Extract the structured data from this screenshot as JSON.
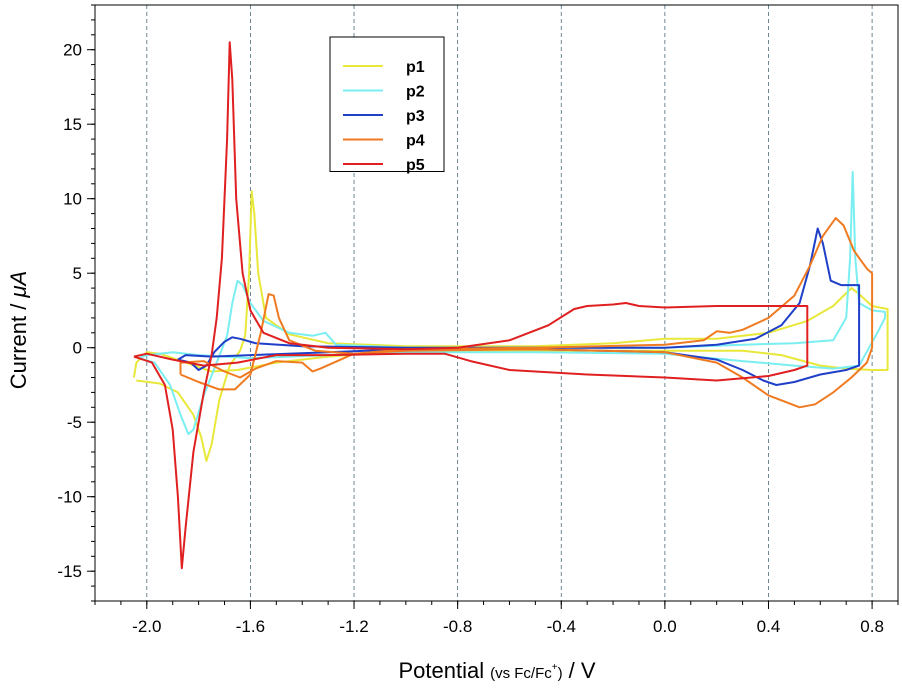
{
  "chart_data": {
    "type": "line",
    "title": "",
    "xlabel": {
      "main": "Potential",
      "paren_prefix": "(vs Fc/Fc",
      "paren_sup": "+",
      "paren_suffix": ")",
      "unit": "/ V"
    },
    "ylabel": {
      "main": "Current / ",
      "unit_italic": "μA"
    },
    "xlim": [
      -2.2,
      0.9
    ],
    "ylim": [
      -17,
      23
    ],
    "x_ticks": [
      -2.0,
      -1.6,
      -1.2,
      -0.8,
      -0.4,
      0.0,
      0.4,
      0.8
    ],
    "x_tick_labels": [
      "-2.0",
      "-1.6",
      "-1.2",
      "-0.8",
      "-0.4",
      "0.0",
      "0.4",
      "0.8"
    ],
    "y_ticks": [
      -15,
      -10,
      -5,
      0,
      5,
      10,
      15,
      20
    ],
    "y_tick_labels": [
      "-15",
      "-10",
      "-5",
      "0",
      "5",
      "10",
      "15",
      "20"
    ],
    "grid": "vertical dashed at major x ticks",
    "legend_position": "top-center",
    "series": [
      {
        "name": "p1",
        "color": "#e8e83a",
        "points": [
          [
            -2.04,
            -2.2
          ],
          [
            -1.95,
            -2.4
          ],
          [
            -1.88,
            -3.0
          ],
          [
            -1.82,
            -4.5
          ],
          [
            -1.79,
            -6.0
          ],
          [
            -1.77,
            -7.6
          ],
          [
            -1.75,
            -6.5
          ],
          [
            -1.72,
            -3.5
          ],
          [
            -1.68,
            -1.2
          ],
          [
            -1.64,
            -0.2
          ],
          [
            -1.62,
            0.8
          ],
          [
            -1.605,
            5.0
          ],
          [
            -1.595,
            10.5
          ],
          [
            -1.585,
            9.0
          ],
          [
            -1.57,
            5.0
          ],
          [
            -1.54,
            2.0
          ],
          [
            -1.45,
            0.9
          ],
          [
            -1.3,
            0.3
          ],
          [
            -1.0,
            0.1
          ],
          [
            -0.5,
            0.1
          ],
          [
            -0.2,
            0.3
          ],
          [
            0.0,
            0.6
          ],
          [
            0.2,
            0.6
          ],
          [
            0.4,
            1.0
          ],
          [
            0.55,
            1.8
          ],
          [
            0.65,
            2.8
          ],
          [
            0.72,
            4.0
          ],
          [
            0.75,
            3.6
          ],
          [
            0.8,
            2.8
          ],
          [
            0.86,
            2.6
          ],
          [
            0.86,
            -1.5
          ],
          [
            0.8,
            -1.5
          ],
          [
            0.7,
            -1.4
          ],
          [
            0.6,
            -1.2
          ],
          [
            0.45,
            -0.5
          ],
          [
            0.3,
            -0.2
          ],
          [
            0.0,
            -0.2
          ],
          [
            -0.5,
            -0.2
          ],
          [
            -1.0,
            -0.2
          ],
          [
            -1.3,
            -0.6
          ],
          [
            -1.5,
            -1.0
          ],
          [
            -1.65,
            -1.5
          ],
          [
            -1.75,
            -1.6
          ],
          [
            -1.85,
            -1.0
          ],
          [
            -1.95,
            -0.4
          ],
          [
            -2.0,
            -0.3
          ],
          [
            -2.04,
            -1.0
          ],
          [
            -2.05,
            -2.0
          ]
        ]
      },
      {
        "name": "p2",
        "color": "#7aeef0",
        "points": [
          [
            -2.03,
            -0.7
          ],
          [
            -1.97,
            -1.0
          ],
          [
            -1.91,
            -2.5
          ],
          [
            -1.87,
            -4.5
          ],
          [
            -1.84,
            -5.8
          ],
          [
            -1.82,
            -5.5
          ],
          [
            -1.78,
            -3.2
          ],
          [
            -1.73,
            -1.0
          ],
          [
            -1.69,
            0.8
          ],
          [
            -1.67,
            3.0
          ],
          [
            -1.65,
            4.5
          ],
          [
            -1.63,
            4.2
          ],
          [
            -1.6,
            3.0
          ],
          [
            -1.55,
            1.8
          ],
          [
            -1.45,
            1.0
          ],
          [
            -1.36,
            0.8
          ],
          [
            -1.31,
            1.0
          ],
          [
            -1.27,
            0.2
          ],
          [
            -1.0,
            0.0
          ],
          [
            -0.5,
            0.0
          ],
          [
            0.0,
            0.0
          ],
          [
            0.3,
            0.2
          ],
          [
            0.5,
            0.3
          ],
          [
            0.65,
            0.5
          ],
          [
            0.7,
            2.0
          ],
          [
            0.715,
            6.0
          ],
          [
            0.725,
            11.8
          ],
          [
            0.735,
            6.0
          ],
          [
            0.75,
            3.0
          ],
          [
            0.8,
            2.5
          ],
          [
            0.85,
            2.4
          ],
          [
            0.85,
            2.0
          ],
          [
            0.82,
            1.0
          ],
          [
            0.75,
            -1.2
          ],
          [
            0.65,
            -1.4
          ],
          [
            0.5,
            -1.2
          ],
          [
            0.3,
            -0.9
          ],
          [
            0.0,
            -0.4
          ],
          [
            -0.5,
            -0.3
          ],
          [
            -1.0,
            -0.3
          ],
          [
            -1.3,
            -0.5
          ],
          [
            -1.6,
            -0.7
          ],
          [
            -1.8,
            -0.5
          ],
          [
            -1.9,
            -0.3
          ],
          [
            -2.0,
            -0.5
          ],
          [
            -2.03,
            -0.7
          ]
        ]
      },
      {
        "name": "p3",
        "color": "#1f3fc8",
        "points": [
          [
            -1.88,
            -0.8
          ],
          [
            -1.83,
            -1.0
          ],
          [
            -1.8,
            -1.5
          ],
          [
            -1.77,
            -1.2
          ],
          [
            -1.74,
            -0.3
          ],
          [
            -1.7,
            0.4
          ],
          [
            -1.67,
            0.7
          ],
          [
            -1.64,
            0.6
          ],
          [
            -1.58,
            0.3
          ],
          [
            -1.4,
            0.1
          ],
          [
            -1.0,
            0.0
          ],
          [
            -0.5,
            0.0
          ],
          [
            0.0,
            0.0
          ],
          [
            0.2,
            0.2
          ],
          [
            0.35,
            0.6
          ],
          [
            0.45,
            1.5
          ],
          [
            0.52,
            3.0
          ],
          [
            0.56,
            5.5
          ],
          [
            0.59,
            8.0
          ],
          [
            0.61,
            7.0
          ],
          [
            0.64,
            4.5
          ],
          [
            0.68,
            4.2
          ],
          [
            0.75,
            4.2
          ],
          [
            0.75,
            -1.2
          ],
          [
            0.7,
            -1.5
          ],
          [
            0.6,
            -1.8
          ],
          [
            0.5,
            -2.3
          ],
          [
            0.43,
            -2.5
          ],
          [
            0.38,
            -2.2
          ],
          [
            0.3,
            -1.5
          ],
          [
            0.2,
            -0.8
          ],
          [
            0.0,
            -0.3
          ],
          [
            -0.5,
            -0.1
          ],
          [
            -1.0,
            -0.1
          ],
          [
            -1.3,
            -0.3
          ],
          [
            -1.6,
            -0.5
          ],
          [
            -1.75,
            -0.6
          ],
          [
            -1.85,
            -0.5
          ],
          [
            -1.88,
            -0.8
          ]
        ]
      },
      {
        "name": "p4",
        "color": "#f07a20",
        "points": [
          [
            -1.87,
            -1.8
          ],
          [
            -1.8,
            -2.3
          ],
          [
            -1.72,
            -2.8
          ],
          [
            -1.66,
            -2.8
          ],
          [
            -1.6,
            -1.8
          ],
          [
            -1.56,
            1.0
          ],
          [
            -1.53,
            3.6
          ],
          [
            -1.51,
            3.5
          ],
          [
            -1.49,
            2.0
          ],
          [
            -1.45,
            0.5
          ],
          [
            -1.35,
            -0.2
          ],
          [
            -1.2,
            -0.4
          ],
          [
            -1.0,
            -0.1
          ],
          [
            -0.5,
            0.0
          ],
          [
            0.0,
            0.2
          ],
          [
            0.15,
            0.5
          ],
          [
            0.2,
            1.1
          ],
          [
            0.25,
            1.0
          ],
          [
            0.3,
            1.2
          ],
          [
            0.4,
            2.0
          ],
          [
            0.5,
            3.5
          ],
          [
            0.56,
            5.5
          ],
          [
            0.61,
            7.5
          ],
          [
            0.66,
            8.7
          ],
          [
            0.69,
            8.2
          ],
          [
            0.73,
            6.5
          ],
          [
            0.78,
            5.3
          ],
          [
            0.8,
            5.0
          ],
          [
            0.8,
            0.0
          ],
          [
            0.78,
            -1.0
          ],
          [
            0.72,
            -2.0
          ],
          [
            0.65,
            -3.0
          ],
          [
            0.58,
            -3.8
          ],
          [
            0.52,
            -4.0
          ],
          [
            0.46,
            -3.6
          ],
          [
            0.4,
            -3.2
          ],
          [
            0.3,
            -2.0
          ],
          [
            0.2,
            -1.0
          ],
          [
            0.0,
            -0.3
          ],
          [
            -0.5,
            -0.1
          ],
          [
            -1.0,
            -0.2
          ],
          [
            -1.2,
            -0.4
          ],
          [
            -1.33,
            -1.4
          ],
          [
            -1.36,
            -1.6
          ],
          [
            -1.4,
            -1.0
          ],
          [
            -1.5,
            -0.9
          ],
          [
            -1.58,
            -1.4
          ],
          [
            -1.64,
            -2.0
          ],
          [
            -1.7,
            -1.6
          ],
          [
            -1.78,
            -0.9
          ],
          [
            -1.87,
            -1.0
          ],
          [
            -1.87,
            -1.8
          ]
        ]
      },
      {
        "name": "p5",
        "color": "#e02020",
        "points": [
          [
            -2.05,
            -0.6
          ],
          [
            -1.98,
            -1.0
          ],
          [
            -1.93,
            -2.5
          ],
          [
            -1.9,
            -5.5
          ],
          [
            -1.88,
            -10.0
          ],
          [
            -1.865,
            -14.8
          ],
          [
            -1.85,
            -12.0
          ],
          [
            -1.82,
            -7.0
          ],
          [
            -1.78,
            -3.0
          ],
          [
            -1.75,
            -0.5
          ],
          [
            -1.73,
            2.0
          ],
          [
            -1.71,
            6.0
          ],
          [
            -1.69,
            14.0
          ],
          [
            -1.68,
            20.5
          ],
          [
            -1.67,
            18.0
          ],
          [
            -1.655,
            10.0
          ],
          [
            -1.63,
            5.0
          ],
          [
            -1.6,
            2.5
          ],
          [
            -1.55,
            1.0
          ],
          [
            -1.45,
            0.3
          ],
          [
            -1.3,
            0.0
          ],
          [
            -1.0,
            -0.1
          ],
          [
            -0.8,
            0.0
          ],
          [
            -0.6,
            0.5
          ],
          [
            -0.45,
            1.5
          ],
          [
            -0.35,
            2.6
          ],
          [
            -0.3,
            2.8
          ],
          [
            -0.2,
            2.9
          ],
          [
            -0.15,
            3.0
          ],
          [
            -0.1,
            2.8
          ],
          [
            0.0,
            2.7
          ],
          [
            0.2,
            2.8
          ],
          [
            0.4,
            2.8
          ],
          [
            0.55,
            2.8
          ],
          [
            0.55,
            -1.2
          ],
          [
            0.5,
            -1.5
          ],
          [
            0.4,
            -1.9
          ],
          [
            0.2,
            -2.2
          ],
          [
            0.0,
            -2.0
          ],
          [
            -0.3,
            -1.8
          ],
          [
            -0.6,
            -1.5
          ],
          [
            -0.75,
            -0.9
          ],
          [
            -0.85,
            -0.4
          ],
          [
            -1.0,
            -0.4
          ],
          [
            -1.3,
            -0.5
          ],
          [
            -1.5,
            -0.5
          ],
          [
            -1.65,
            -1.0
          ],
          [
            -1.78,
            -1.2
          ],
          [
            -1.9,
            -0.8
          ],
          [
            -2.0,
            -0.4
          ],
          [
            -2.05,
            -0.6
          ]
        ]
      }
    ]
  }
}
